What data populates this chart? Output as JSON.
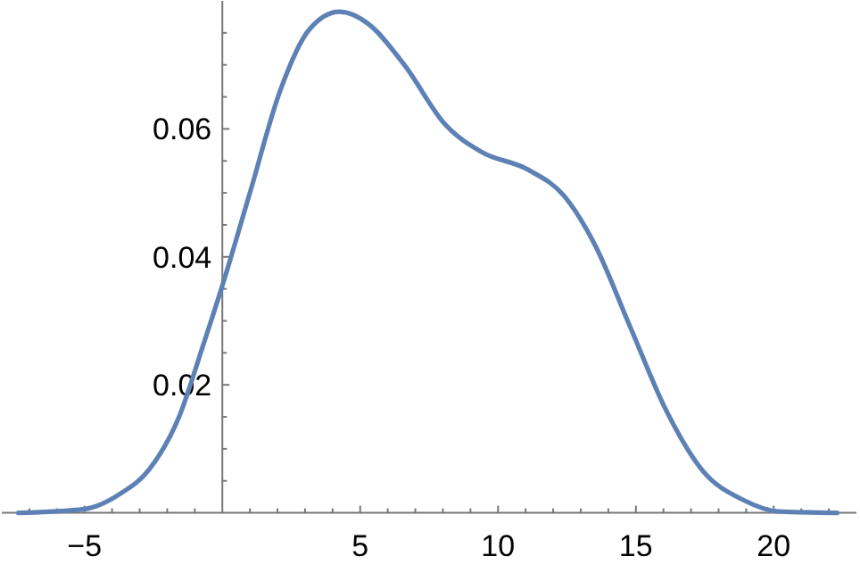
{
  "chart_data": {
    "type": "line",
    "x": [
      -7.4,
      -5.0,
      -3.7,
      -2.65,
      -1.57,
      -0.71,
      0,
      1.0,
      2.1,
      3.15,
      4.25,
      5.3,
      6.6,
      8.1,
      9.4,
      11.1,
      12.4,
      13.5,
      14.8,
      16.1,
      17.4,
      18.9,
      20.2,
      22.3
    ],
    "series": [
      {
        "color": "#5e81b5",
        "values": [
          0,
          0.0006,
          0.003,
          0.0068,
          0.015,
          0.026,
          0.0355,
          0.05,
          0.066,
          0.0755,
          0.0783,
          0.0764,
          0.07,
          0.0606,
          0.0564,
          0.0536,
          0.0495,
          0.042,
          0.029,
          0.016,
          0.0067,
          0.002,
          0.0002,
          0
        ]
      }
    ],
    "xlim": [
      -8,
      23
    ],
    "xticks": [
      {
        "value": -7,
        "label": null
      },
      {
        "value": -6,
        "label": null
      },
      {
        "value": -5,
        "label": "−5"
      },
      {
        "value": -4,
        "label": null
      },
      {
        "value": -3,
        "label": null
      },
      {
        "value": -2,
        "label": null
      },
      {
        "value": -1,
        "label": null
      },
      {
        "value": 1,
        "label": null
      },
      {
        "value": 2,
        "label": null
      },
      {
        "value": 3,
        "label": null
      },
      {
        "value": 4,
        "label": null
      },
      5,
      {
        "value": 6,
        "label": null
      },
      {
        "value": 7,
        "label": null
      },
      {
        "value": 8,
        "label": null
      },
      {
        "value": 9,
        "label": null
      },
      10,
      {
        "value": 11,
        "label": null
      },
      {
        "value": 12,
        "label": null
      },
      {
        "value": 13,
        "label": null
      },
      {
        "value": 14,
        "label": null
      },
      15,
      {
        "value": 16,
        "label": null
      },
      {
        "value": 17,
        "label": null
      },
      {
        "value": 18,
        "label": null
      },
      {
        "value": 19,
        "label": null
      },
      20,
      {
        "value": 21,
        "label": null
      },
      {
        "value": 22,
        "label": null
      }
    ],
    "ylim": [
      0,
      0.08
    ],
    "yticks": [
      {
        "value": 0.005,
        "label": null
      },
      {
        "value": 0.01,
        "label": null
      },
      {
        "value": 0.015,
        "label": null
      },
      0.02,
      {
        "value": 0.025,
        "label": null
      },
      {
        "value": 0.03,
        "label": null
      },
      {
        "value": 0.035,
        "label": null
      },
      0.04,
      {
        "value": 0.045,
        "label": null
      },
      {
        "value": 0.05,
        "label": null
      },
      {
        "value": 0.055,
        "label": null
      },
      0.06,
      {
        "value": 0.065,
        "label": null
      },
      {
        "value": 0.07,
        "label": null
      },
      {
        "value": 0.075,
        "label": null
      }
    ],
    "grid": false,
    "marker": "none",
    "line_style": "solid"
  }
}
